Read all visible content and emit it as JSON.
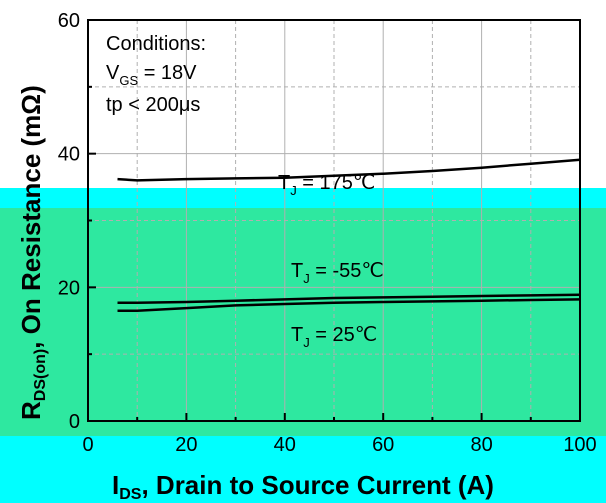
{
  "chart_data": {
    "type": "line",
    "xlabel": "I",
    "xlabel_sub": "DS",
    "xlabel_rest": ", Drain to Source Current (A)",
    "ylabel": "R",
    "ylabel_sub": "DS(on)",
    "ylabel_rest": ", On Resistance (mΩ)",
    "xlim": [
      0,
      100
    ],
    "ylim": [
      0,
      60
    ],
    "x_ticks": [
      "0",
      "20",
      "40",
      "60",
      "80",
      "100"
    ],
    "y_ticks": [
      "0",
      "20",
      "40",
      "60"
    ],
    "grid": true,
    "conditions": {
      "title": "Conditions:",
      "vgs_symbol": "V",
      "vgs_sub": "GS",
      "vgs_value": " = 18V",
      "tp": "tp < 200μs"
    },
    "series": [
      {
        "name": "TJ = 175℃",
        "label_symbol": "T",
        "label_sub": "J",
        "label_value": " = 175℃",
        "color": "#000000",
        "x": [
          6,
          10,
          20,
          30,
          40,
          50,
          60,
          70,
          80,
          90,
          100
        ],
        "y": [
          36.2,
          36.0,
          36.2,
          36.3,
          36.4,
          36.7,
          37.0,
          37.4,
          37.9,
          38.5,
          39.1
        ]
      },
      {
        "name": "TJ = -55℃",
        "label_symbol": "T",
        "label_sub": "J",
        "label_value": " = -55℃",
        "color": "#000000",
        "x": [
          6,
          10,
          20,
          30,
          40,
          50,
          60,
          70,
          80,
          90,
          100
        ],
        "y": [
          17.7,
          17.7,
          17.8,
          18.0,
          18.2,
          18.4,
          18.5,
          18.6,
          18.7,
          18.8,
          18.9
        ]
      },
      {
        "name": "TJ = 25℃",
        "label_symbol": "T",
        "label_sub": "J",
        "label_value": " = 25℃",
        "color": "#000000",
        "x": [
          6,
          10,
          20,
          30,
          40,
          50,
          60,
          70,
          80,
          90,
          100
        ],
        "y": [
          16.5,
          16.5,
          16.9,
          17.3,
          17.5,
          17.7,
          17.8,
          17.9,
          18.0,
          18.1,
          18.2
        ]
      }
    ]
  },
  "colors": {
    "band_cyan": "#00ffff",
    "band_green": "#2ee8a0",
    "grid": "#b0b0b0"
  }
}
